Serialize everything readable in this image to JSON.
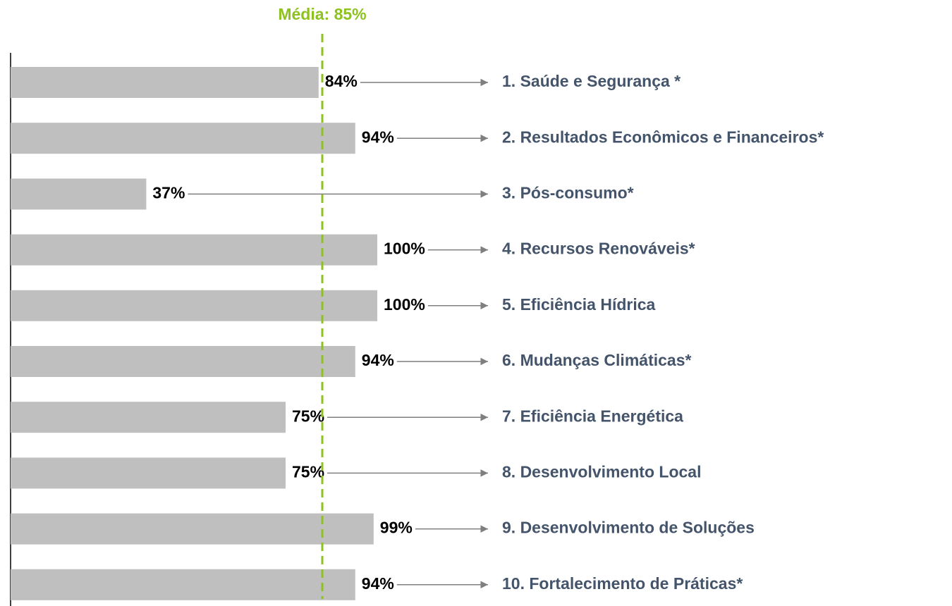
{
  "chart_data": {
    "type": "bar",
    "orientation": "horizontal",
    "categories": [
      "1. Saúde e Segurança *",
      "2. Resultados Econômicos e Financeiros*",
      "3. Pós-consumo*",
      "4. Recursos Renováveis*",
      "5. Eficiência Hídrica",
      "6. Mudanças Climáticas*",
      "7. Eficiência Energética",
      "8. Desenvolvimento Local",
      "9. Desenvolvimento de Soluções",
      "10. Fortalecimento de Práticas*"
    ],
    "values": [
      84,
      94,
      37,
      100,
      100,
      94,
      75,
      75,
      99,
      94
    ],
    "value_labels": [
      "84%",
      "94%",
      "37%",
      "100%",
      "100%",
      "94%",
      "75%",
      "75%",
      "99%",
      "94%"
    ],
    "color": "#bfbfbf",
    "label_color": "#44546a",
    "xlim": [
      0,
      100
    ],
    "average": {
      "value": 85,
      "label": "Média: 85%",
      "color": "#8dc21f"
    }
  }
}
